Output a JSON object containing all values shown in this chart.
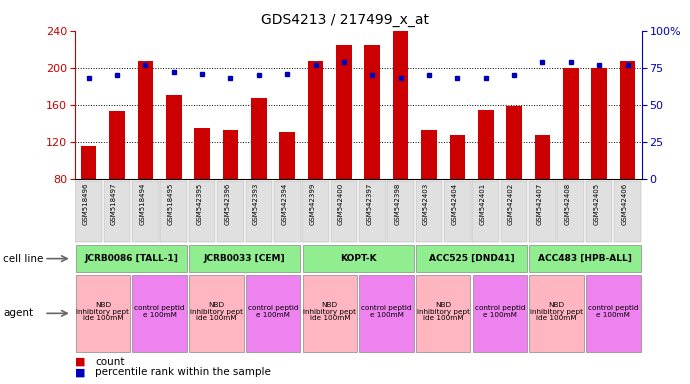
{
  "title": "GDS4213 / 217499_x_at",
  "samples": [
    "GSM518496",
    "GSM518497",
    "GSM518494",
    "GSM518495",
    "GSM542395",
    "GSM542396",
    "GSM542393",
    "GSM542394",
    "GSM542399",
    "GSM542400",
    "GSM542397",
    "GSM542398",
    "GSM542403",
    "GSM542404",
    "GSM542401",
    "GSM542402",
    "GSM542407",
    "GSM542408",
    "GSM542405",
    "GSM542406"
  ],
  "counts": [
    115,
    153,
    207,
    170,
    135,
    133,
    167,
    130,
    207,
    225,
    225,
    240,
    133,
    127,
    154,
    159,
    127,
    200,
    200,
    207
  ],
  "percentiles": [
    68,
    70,
    77,
    72,
    71,
    68,
    70,
    71,
    77,
    79,
    70,
    68,
    70,
    68,
    68,
    70,
    79,
    79,
    77,
    77
  ],
  "ylim_left": [
    80,
    240
  ],
  "ylim_right": [
    0,
    100
  ],
  "yticks_left": [
    80,
    120,
    160,
    200,
    240
  ],
  "yticks_right": [
    0,
    25,
    50,
    75,
    100
  ],
  "ytick_labels_right": [
    "0",
    "25",
    "50",
    "75",
    "100%"
  ],
  "bar_color": "#CC0000",
  "dot_color": "#0000BB",
  "left_axis_color": "#CC0000",
  "right_axis_color": "#0000BB",
  "cell_lines": [
    {
      "label": "JCRB0086 [TALL-1]",
      "start": 0,
      "end": 4,
      "color": "#90EE90"
    },
    {
      "label": "JCRB0033 [CEM]",
      "start": 4,
      "end": 8,
      "color": "#90EE90"
    },
    {
      "label": "KOPT-K",
      "start": 8,
      "end": 12,
      "color": "#90EE90"
    },
    {
      "label": "ACC525 [DND41]",
      "start": 12,
      "end": 16,
      "color": "#90EE90"
    },
    {
      "label": "ACC483 [HPB-ALL]",
      "start": 16,
      "end": 20,
      "color": "#90EE90"
    }
  ],
  "agents": [
    {
      "label": "NBD\ninhibitory pept\nide 100mM",
      "start": 0,
      "end": 2,
      "color": "#FFB6C1"
    },
    {
      "label": "control peptid\ne 100mM",
      "start": 2,
      "end": 4,
      "color": "#EE82EE"
    },
    {
      "label": "NBD\ninhibitory pept\nide 100mM",
      "start": 4,
      "end": 6,
      "color": "#FFB6C1"
    },
    {
      "label": "control peptid\ne 100mM",
      "start": 6,
      "end": 8,
      "color": "#EE82EE"
    },
    {
      "label": "NBD\ninhibitory pept\nide 100mM",
      "start": 8,
      "end": 10,
      "color": "#FFB6C1"
    },
    {
      "label": "control peptid\ne 100mM",
      "start": 10,
      "end": 12,
      "color": "#EE82EE"
    },
    {
      "label": "NBD\ninhibitory pept\nide 100mM",
      "start": 12,
      "end": 14,
      "color": "#FFB6C1"
    },
    {
      "label": "control peptid\ne 100mM",
      "start": 14,
      "end": 16,
      "color": "#EE82EE"
    },
    {
      "label": "NBD\ninhibitory pept\nide 100mM",
      "start": 16,
      "end": 18,
      "color": "#FFB6C1"
    },
    {
      "label": "control peptid\ne 100mM",
      "start": 18,
      "end": 20,
      "color": "#EE82EE"
    }
  ],
  "legend": [
    {
      "color": "#CC0000",
      "label": "count"
    },
    {
      "color": "#0000BB",
      "label": "percentile rank within the sample"
    }
  ],
  "grid_yticks": [
    120,
    160,
    200
  ]
}
